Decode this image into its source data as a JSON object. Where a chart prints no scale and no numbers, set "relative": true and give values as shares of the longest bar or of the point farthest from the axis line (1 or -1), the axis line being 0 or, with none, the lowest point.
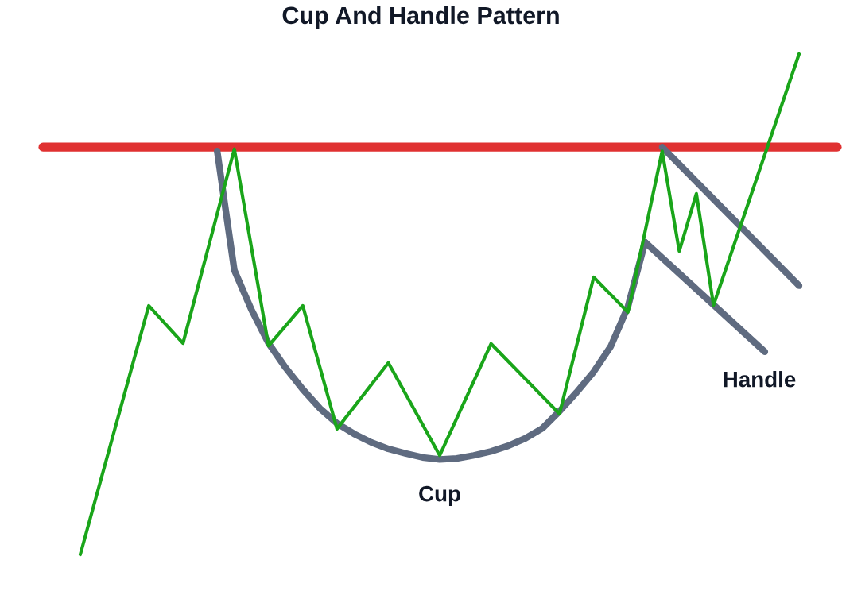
{
  "chart_data": {
    "type": "line",
    "title": "Cup And Handle Pattern",
    "relative": true,
    "marker": "none",
    "line_style": "solid",
    "categories": [
      null,
      null,
      null,
      null,
      null,
      null,
      null,
      null,
      null,
      null,
      null,
      null,
      null,
      null,
      null,
      null,
      null,
      null,
      null,
      null,
      null,
      null,
      null,
      null,
      null,
      null,
      null,
      null,
      null,
      null,
      null,
      null,
      null,
      null,
      null,
      null,
      null,
      null,
      null,
      null,
      null,
      null,
      null
    ],
    "series": [
      {
        "color": "#1aa51a",
        "values": [
          0,
          null,
          null,
          null,
          0.497,
          null,
          0.422,
          null,
          null,
          0.81,
          null,
          0.417,
          null,
          0.497,
          null,
          0.251,
          null,
          null,
          0.383,
          null,
          null,
          0.198,
          null,
          null,
          0.421,
          null,
          null,
          null,
          0.281,
          null,
          0.554,
          null,
          0.484,
          null,
          0.806,
          0.606,
          0.721,
          0.498,
          null,
          null,
          null,
          null,
          1
        ]
      },
      {
        "color": "#5f6b80",
        "values": [
          null,
          null,
          null,
          null,
          null,
          null,
          null,
          null,
          0.806,
          0.568,
          0.489,
          0.422,
          0.373,
          0.33,
          0.292,
          0.262,
          0.241,
          0.224,
          0.211,
          0.202,
          0.194,
          0.19,
          0.192,
          0.198,
          0.206,
          0.217,
          0.232,
          0.252,
          0.286,
          0.324,
          0.365,
          0.416,
          0.495,
          0.624,
          null,
          null,
          null,
          null,
          null,
          null,
          null,
          null,
          null
        ]
      },
      {
        "color": "#5f6b80",
        "values": [
          null,
          null,
          null,
          null,
          null,
          null,
          null,
          null,
          null,
          null,
          null,
          null,
          null,
          null,
          null,
          null,
          null,
          null,
          null,
          null,
          null,
          null,
          null,
          null,
          null,
          null,
          null,
          null,
          null,
          null,
          null,
          null,
          null,
          0.624,
          null,
          null,
          null,
          null,
          null,
          null,
          0.405,
          null,
          null
        ]
      },
      {
        "color": "#5f6b80",
        "values": [
          null,
          null,
          null,
          null,
          null,
          null,
          null,
          null,
          null,
          null,
          null,
          null,
          null,
          null,
          null,
          null,
          null,
          null,
          null,
          null,
          null,
          null,
          null,
          null,
          null,
          null,
          null,
          null,
          null,
          null,
          null,
          null,
          null,
          null,
          0.814,
          null,
          null,
          null,
          null,
          null,
          null,
          null,
          0.537
        ]
      }
    ],
    "ref_lines": [
      {
        "axis": "y",
        "value": 0.814,
        "color": "#e03131"
      }
    ],
    "annotations": [
      "Cup",
      "Handle"
    ]
  }
}
